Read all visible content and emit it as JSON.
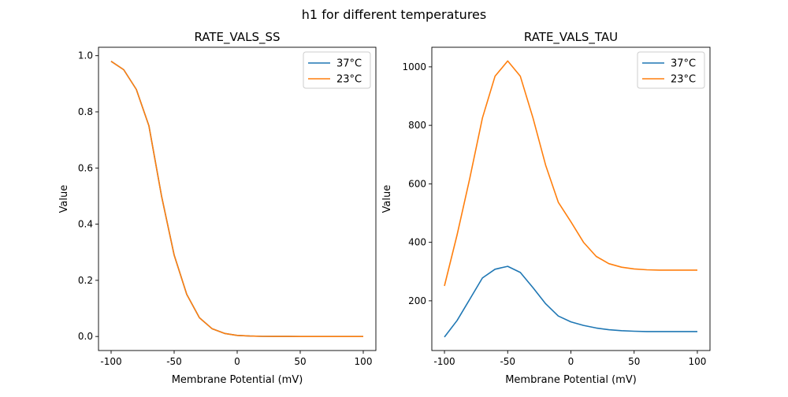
{
  "chart_data": [
    {
      "type": "line",
      "suptitle": "h1 for different temperatures",
      "title": "RATE_VALS_SS",
      "xlabel": "Membrane Potential (mV)",
      "ylabel": "Value",
      "xlim": [
        -110,
        110
      ],
      "ylim": [
        -0.05,
        1.03
      ],
      "xticks": [
        -100,
        -50,
        0,
        50,
        100
      ],
      "yticks": [
        0.0,
        0.2,
        0.4,
        0.6,
        0.8,
        1.0
      ],
      "ytick_labels": [
        "0.0",
        "0.2",
        "0.4",
        "0.6",
        "0.8",
        "1.0"
      ],
      "legend": "top-right",
      "x": [
        -100,
        -90,
        -80,
        -70,
        -60,
        -50,
        -40,
        -30,
        -20,
        -10,
        0,
        10,
        20,
        30,
        40,
        50,
        60,
        70,
        80,
        90,
        100
      ],
      "series": [
        {
          "name": "37°C",
          "color": "#1f77b4",
          "values": [
            0.98,
            0.95,
            0.88,
            0.75,
            0.5,
            0.29,
            0.15,
            0.067,
            0.028,
            0.011,
            0.004,
            0.0015,
            0.0006,
            0.0002,
            0.0001,
            0,
            0,
            0,
            0,
            0,
            0
          ]
        },
        {
          "name": "23°C",
          "color": "#ff7f0e",
          "values": [
            0.98,
            0.95,
            0.88,
            0.75,
            0.5,
            0.29,
            0.15,
            0.067,
            0.028,
            0.011,
            0.004,
            0.0015,
            0.0006,
            0.0002,
            0.0001,
            0,
            0,
            0,
            0,
            0,
            0
          ]
        }
      ]
    },
    {
      "type": "line",
      "title": "RATE_VALS_TAU",
      "xlabel": "Membrane Potential (mV)",
      "ylabel": "Value",
      "xlim": [
        -110,
        110
      ],
      "ylim": [
        30,
        1067
      ],
      "xticks": [
        -100,
        -50,
        0,
        50,
        100
      ],
      "yticks": [
        200,
        400,
        600,
        800,
        1000
      ],
      "ytick_labels": [
        "200",
        "400",
        "600",
        "800",
        "1000"
      ],
      "legend": "top-right",
      "x": [
        -100,
        -90,
        -80,
        -70,
        -60,
        -50,
        -40,
        -30,
        -20,
        -10,
        0,
        10,
        20,
        30,
        40,
        50,
        60,
        70,
        80,
        90,
        100
      ],
      "series": [
        {
          "name": "37°C",
          "color": "#1f77b4",
          "values": [
            76,
            133,
            205,
            278,
            308,
            318,
            297,
            245,
            190,
            148,
            128,
            116,
            107,
            101,
            98,
            96,
            95,
            95,
            95,
            95,
            95
          ]
        },
        {
          "name": "23°C",
          "color": "#ff7f0e",
          "values": [
            251,
            426,
            618,
            825,
            968,
            1020,
            968,
            825,
            664,
            537,
            470,
            400,
            352,
            327,
            315,
            309,
            306,
            305,
            305,
            305,
            305
          ]
        }
      ]
    }
  ]
}
